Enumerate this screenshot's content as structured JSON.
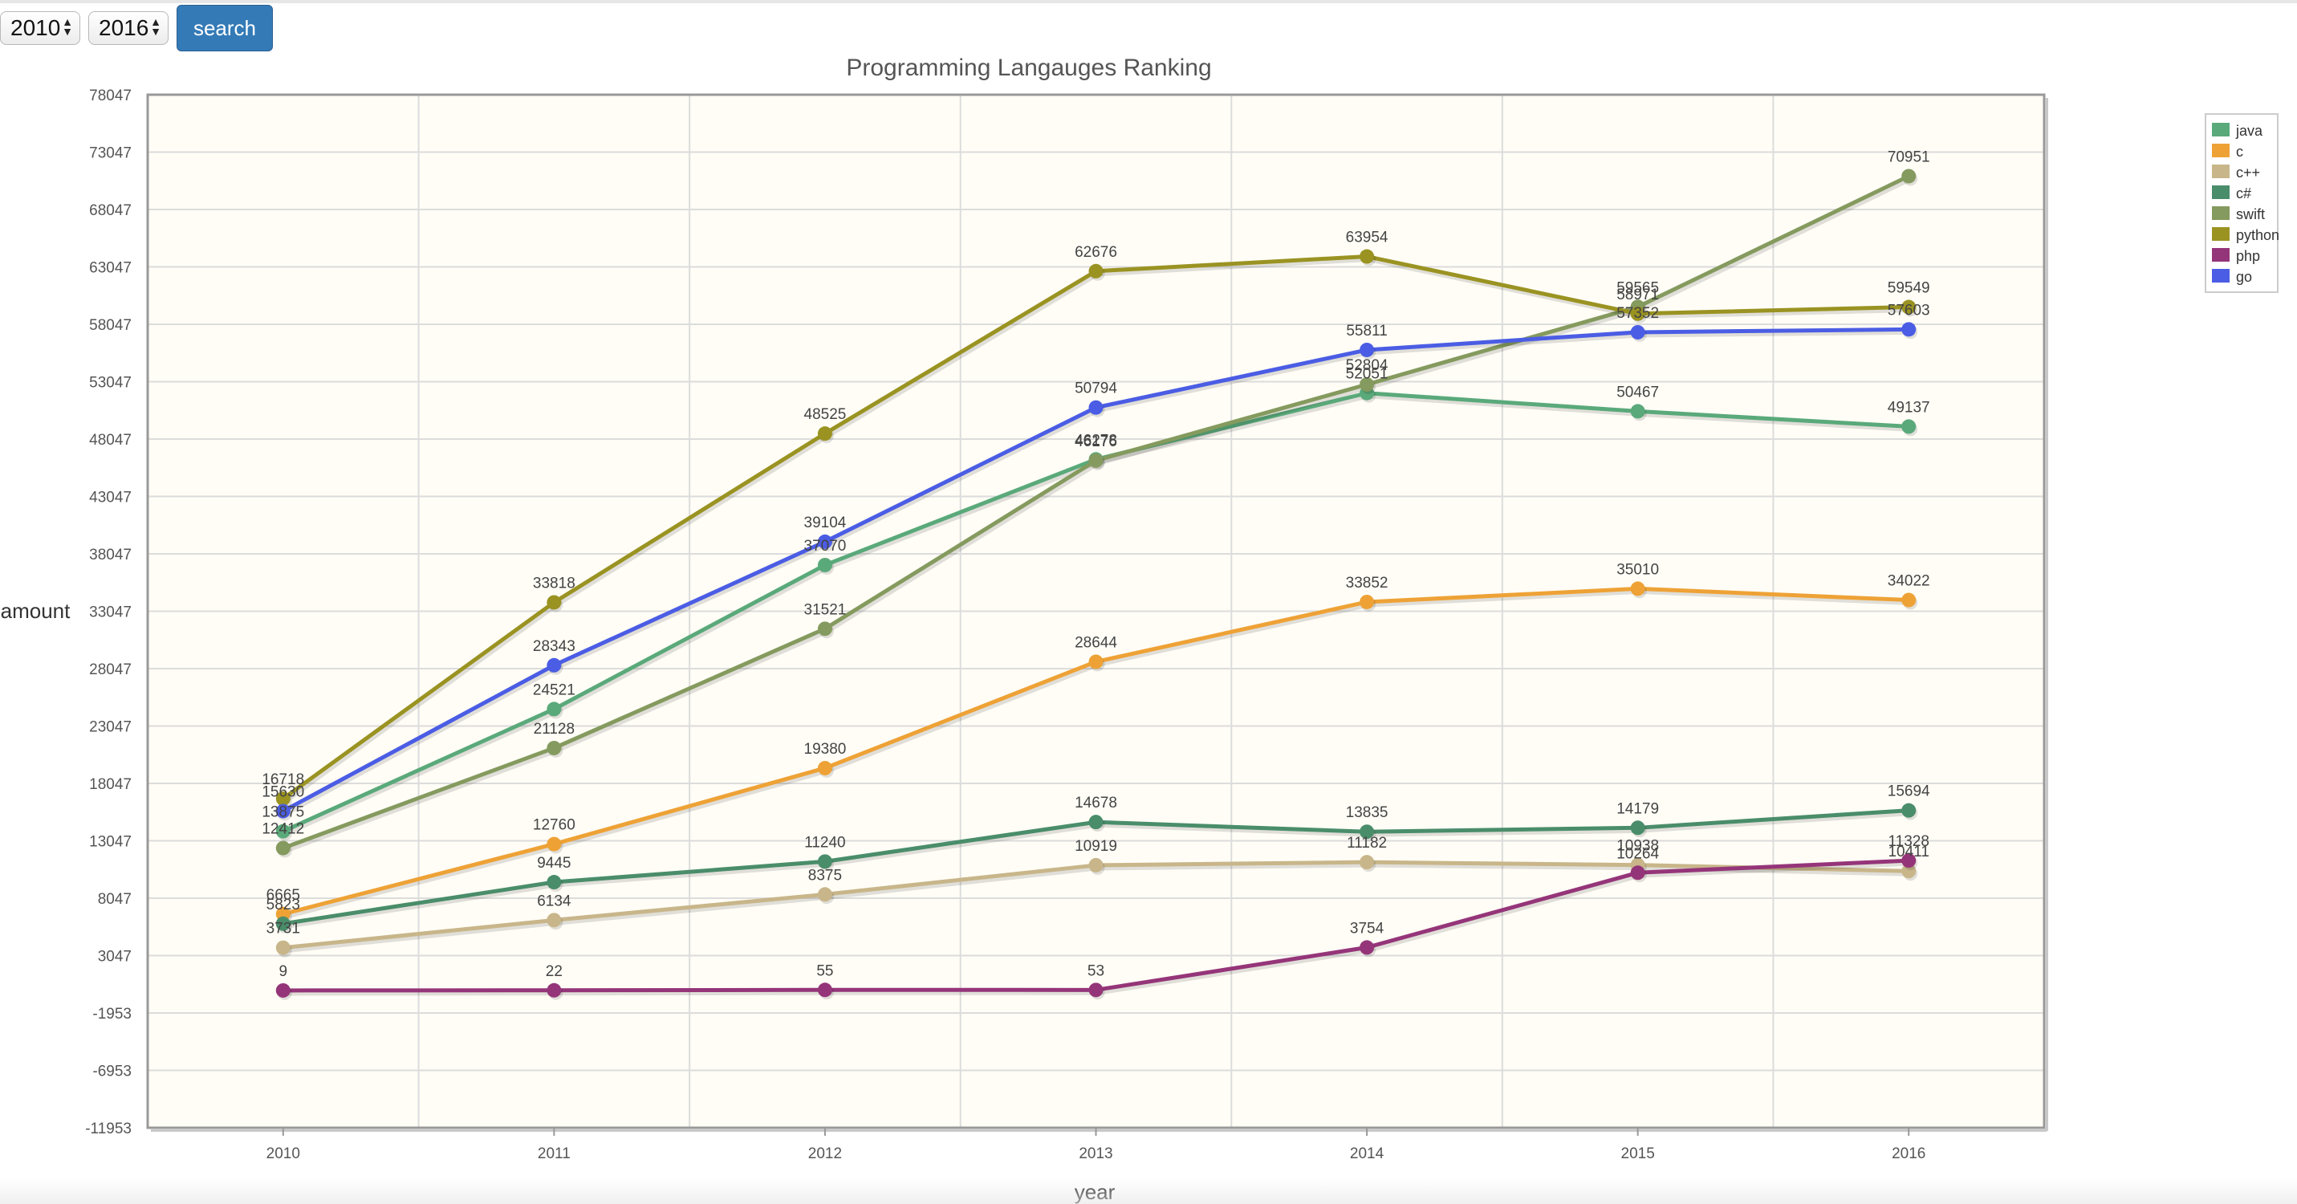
{
  "controls": {
    "start_year": "2010",
    "end_year": "2016",
    "search_label": "search"
  },
  "chart_data": {
    "type": "line",
    "title": "Programming Langauges Ranking",
    "xlabel": "year",
    "ylabel": "amount",
    "categories": [
      "2010",
      "2011",
      "2012",
      "2013",
      "2014",
      "2015",
      "2016"
    ],
    "yticks": [
      "78047",
      "73047",
      "68047",
      "63047",
      "58047",
      "53047",
      "48047",
      "43047",
      "38047",
      "33047",
      "28047",
      "23047",
      "18047",
      "13047",
      "8047",
      "3047",
      "-1953",
      "-6953",
      "-11953"
    ],
    "ylim": [
      -11953,
      78047
    ],
    "grid": true,
    "legend_position": "top-right",
    "series": [
      {
        "name": "java",
        "color": "#5aa97a",
        "values": [
          13875,
          24521,
          37070,
          46278,
          52051,
          50467,
          49137
        ]
      },
      {
        "name": "c",
        "color": "#eea236",
        "values": [
          6665,
          12760,
          19380,
          28644,
          33852,
          35010,
          34022
        ]
      },
      {
        "name": "c++",
        "color": "#c8b68a",
        "values": [
          3731,
          6134,
          8375,
          10919,
          11182,
          10938,
          10411
        ]
      },
      {
        "name": "c#",
        "color": "#4a8d6a",
        "values": [
          5823,
          9445,
          11240,
          14678,
          13835,
          14179,
          15694
        ]
      },
      {
        "name": "swift",
        "color": "#859a5e",
        "values": [
          12412,
          21128,
          31521,
          46176,
          52804,
          59565,
          70951
        ]
      },
      {
        "name": "python",
        "color": "#9a9322",
        "values": [
          16718,
          33818,
          48525,
          62676,
          63954,
          58971,
          59549
        ]
      },
      {
        "name": "php",
        "color": "#953579",
        "values": [
          9,
          22,
          55,
          53,
          3754,
          10264,
          11328
        ]
      },
      {
        "name": "go",
        "color": "#4b5de4",
        "values": [
          15630,
          28343,
          39104,
          50794,
          55811,
          57352,
          57603
        ]
      }
    ]
  }
}
